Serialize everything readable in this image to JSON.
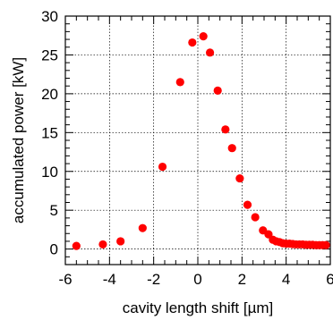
{
  "chart_data": {
    "type": "scatter",
    "title": "",
    "xlabel": "cavity length shift [µm]",
    "ylabel": "accumulated power [kW]",
    "xlim": [
      -6,
      6
    ],
    "ylim": [
      -2,
      30
    ],
    "xticks": [
      -6,
      -4,
      -2,
      0,
      2,
      4,
      6
    ],
    "yticks": [
      0,
      5,
      10,
      15,
      20,
      25,
      30
    ],
    "grid": true,
    "marker_color": "#ff0000",
    "series": [
      {
        "x": [
          -5.5,
          -4.3,
          -3.5,
          -2.5,
          -1.6,
          -0.8,
          -0.25,
          0.25,
          0.55,
          0.9,
          1.25,
          1.55,
          1.9,
          2.25,
          2.6,
          2.95,
          3.2,
          3.4,
          3.55,
          3.7,
          3.85,
          4.0,
          4.15,
          4.3,
          4.45,
          4.6,
          4.75,
          4.9,
          5.05,
          5.2,
          5.35,
          5.5,
          5.65,
          5.8
        ],
        "y": [
          0.4,
          0.6,
          1.0,
          2.7,
          10.6,
          21.5,
          26.6,
          27.4,
          25.3,
          20.4,
          15.4,
          13.0,
          9.1,
          5.7,
          4.1,
          2.4,
          1.9,
          1.2,
          1.0,
          0.9,
          0.75,
          0.7,
          0.7,
          0.65,
          0.6,
          0.6,
          0.6,
          0.55,
          0.55,
          0.55,
          0.5,
          0.5,
          0.5,
          0.5
        ]
      }
    ]
  }
}
